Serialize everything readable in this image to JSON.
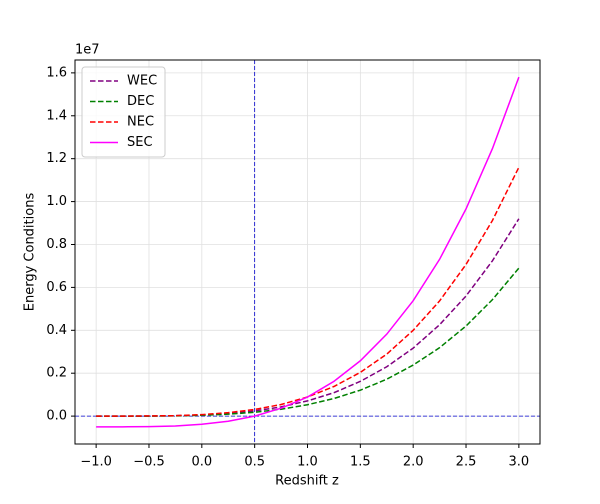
{
  "chart_data": {
    "type": "line",
    "y_offset_label": "1e7",
    "xlabel": "Redshift z",
    "ylabel": "Energy Conditions",
    "x": [
      -1.0,
      -0.75,
      -0.5,
      -0.25,
      0.0,
      0.25,
      0.5,
      0.75,
      1.0,
      1.25,
      1.5,
      1.75,
      2.0,
      2.25,
      2.5,
      2.75,
      3.0
    ],
    "series": [
      {
        "name": "WEC",
        "color": "#800080",
        "linestyle": "dashed",
        "values": [
          0,
          0,
          0,
          0.002,
          0.005,
          0.012,
          0.024,
          0.043,
          0.071,
          0.109,
          0.162,
          0.23,
          0.317,
          0.426,
          0.56,
          0.724,
          0.92
        ]
      },
      {
        "name": "DEC",
        "color": "#008000",
        "linestyle": "dashed",
        "values": [
          0,
          0,
          0,
          0.001,
          0.004,
          0.009,
          0.018,
          0.032,
          0.053,
          0.082,
          0.121,
          0.172,
          0.238,
          0.319,
          0.42,
          0.543,
          0.69
        ]
      },
      {
        "name": "NEC",
        "color": "#ff0000",
        "linestyle": "dashed",
        "values": [
          0,
          0,
          0.001,
          0.002,
          0.007,
          0.016,
          0.031,
          0.054,
          0.089,
          0.138,
          0.204,
          0.289,
          0.4,
          0.537,
          0.707,
          0.912,
          1.16
        ]
      },
      {
        "name": "SEC",
        "color": "#ff00ff",
        "linestyle": "solid",
        "values": [
          -0.05,
          -0.05,
          -0.049,
          -0.046,
          -0.038,
          -0.024,
          0.0,
          0.037,
          0.089,
          0.162,
          0.258,
          0.382,
          0.538,
          0.731,
          0.966,
          1.247,
          1.58
        ]
      }
    ],
    "vlines": [
      0.5
    ],
    "hlines": [
      0
    ],
    "refline_color": "#0000cc",
    "xlim": [
      -1.2,
      3.2
    ],
    "xticks": [
      {
        "value": -1.0,
        "label": "−1.0"
      },
      {
        "value": -0.5,
        "label": "−0.5"
      },
      {
        "value": 0.0,
        "label": "0.0"
      },
      0.5,
      {
        "value": 1.0,
        "label": "1.0"
      },
      1.5,
      {
        "value": 2.0,
        "label": "2.0"
      },
      2.5,
      {
        "value": 3.0,
        "label": "3.0"
      }
    ],
    "ylim": [
      -0.13,
      1.66
    ],
    "yticks": [
      {
        "value": 0.0,
        "label": "0.0"
      },
      0.2,
      0.4,
      0.6,
      0.8,
      {
        "value": 1.0,
        "label": "1.0"
      },
      1.2,
      1.4,
      1.6
    ],
    "grid": true,
    "legend": "upper left"
  }
}
